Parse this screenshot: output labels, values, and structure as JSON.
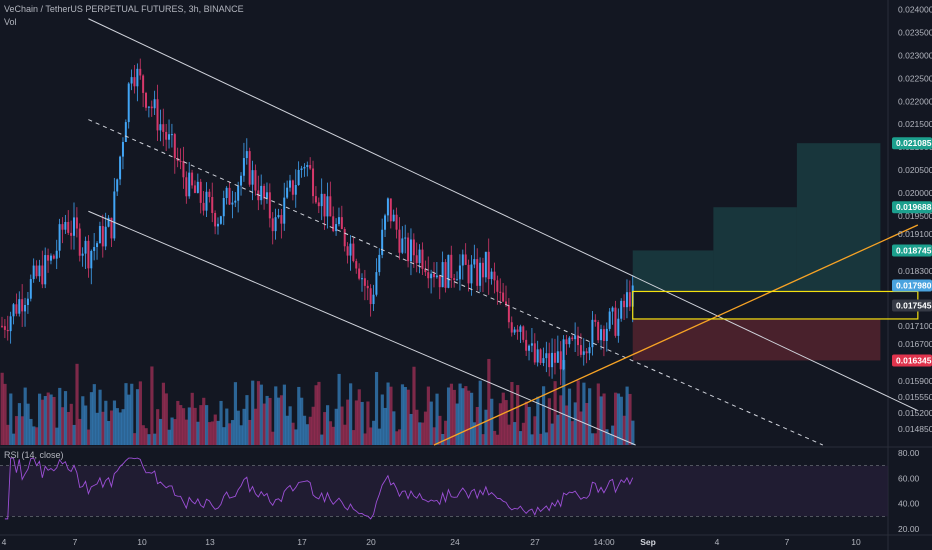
{
  "header": {
    "symbol_line": "VeChain / TetherUS PERPETUAL FUTURES, 3h, BINANCE",
    "vol_label": "Vol",
    "rsi_label": "RSI (14, close)"
  },
  "colors": {
    "background": "#131722",
    "bull": "#42a5f5",
    "bear": "#d6386a",
    "channel_line": "#d1d4dc",
    "trend_line": "#f7a325",
    "box_outline": "#f5e10f",
    "target_zone": "#1e5152",
    "stop_zone": "#5c2530",
    "rsi_line": "#9c4fd6",
    "rsi_band": "#2a1f3d",
    "price_badge_green": "#1ca08e",
    "price_badge_red": "#e0344d",
    "price_badge_current": "#4aa3df",
    "price_badge_gray": "#363a45"
  },
  "chart_data": {
    "type": "candlestick",
    "price_axis": {
      "min": 0.0145,
      "max": 0.0241,
      "tick_labels": [
        "0.024000",
        "0.023500",
        "0.023000",
        "0.022500",
        "0.022000",
        "0.021500",
        "0.021000",
        "0.020500",
        "0.020000",
        "0.019500",
        "0.019100",
        "0.018300",
        "0.017100",
        "0.016700",
        "0.015900",
        "0.015550",
        "0.015200",
        "0.014850"
      ],
      "tick_values": [
        0.024,
        0.0235,
        0.023,
        0.0225,
        0.022,
        0.0215,
        0.021,
        0.0205,
        0.02,
        0.0195,
        0.0191,
        0.0183,
        0.0171,
        0.0167,
        0.0159,
        0.01555,
        0.0152,
        0.01485
      ]
    },
    "price_badges": [
      {
        "label": "0.021085",
        "value": 0.021085,
        "style": "green"
      },
      {
        "label": "0.019688",
        "value": 0.019688,
        "style": "green"
      },
      {
        "label": "0.018745",
        "value": 0.018745,
        "style": "green"
      },
      {
        "label": "0.017980",
        "value": 0.01798,
        "style": "current"
      },
      {
        "label": "0.017545",
        "value": 0.017545,
        "style": "gray"
      },
      {
        "label": "0.016345",
        "value": 0.016345,
        "style": "red"
      }
    ],
    "time_axis": {
      "labels": [
        "4",
        "7",
        "10",
        "13",
        "17",
        "20",
        "24",
        "27",
        "14:00",
        "Sep",
        "4",
        "7",
        "10"
      ],
      "bold": [
        false,
        false,
        false,
        false,
        false,
        false,
        false,
        false,
        false,
        true,
        false,
        false,
        false
      ]
    },
    "candles_count": 220,
    "candle_path_anchors": [
      [
        0,
        0.0171
      ],
      [
        10,
        0.018
      ],
      [
        18,
        0.0186
      ],
      [
        22,
        0.0194
      ],
      [
        30,
        0.0187
      ],
      [
        38,
        0.0193
      ],
      [
        45,
        0.0228
      ],
      [
        55,
        0.0215
      ],
      [
        65,
        0.0201
      ],
      [
        75,
        0.0195
      ],
      [
        85,
        0.0206
      ],
      [
        95,
        0.0193
      ],
      [
        105,
        0.0207
      ],
      [
        115,
        0.0193
      ],
      [
        122,
        0.0188
      ],
      [
        128,
        0.0176
      ],
      [
        134,
        0.0197
      ],
      [
        140,
        0.0187
      ],
      [
        145,
        0.0187
      ],
      [
        152,
        0.0182
      ],
      [
        158,
        0.0184
      ],
      [
        165,
        0.0182
      ],
      [
        168,
        0.0184
      ],
      [
        172,
        0.0178
      ],
      [
        176,
        0.0172
      ],
      [
        180,
        0.0172
      ],
      [
        185,
        0.0163
      ],
      [
        190,
        0.0163
      ],
      [
        196,
        0.0165
      ],
      [
        202,
        0.0168
      ],
      [
        208,
        0.0171
      ],
      [
        214,
        0.0172
      ],
      [
        218,
        0.0178
      ],
      [
        219,
        0.01798
      ]
    ],
    "drawings": {
      "channel_upper": [
        [
          30,
          0.0238
        ],
        [
          318,
          0.01525
        ]
      ],
      "channel_mid": [
        [
          30,
          0.0216
        ],
        [
          285,
          0.0145
        ]
      ],
      "channel_lower": [
        [
          30,
          0.0196
        ],
        [
          220,
          0.0145
        ]
      ],
      "trend_line": [
        [
          150,
          0.0145
        ],
        [
          318,
          0.0193
        ]
      ],
      "entry_box": {
        "x0": 219,
        "x1": 318,
        "top": 0.01785,
        "bottom": 0.01725
      },
      "target_zones": [
        {
          "x0": 219,
          "x1": 247,
          "top": 0.018745
        },
        {
          "x0": 247,
          "x1": 276,
          "top": 0.019688
        },
        {
          "x0": 276,
          "x1": 305,
          "top": 0.021085
        }
      ],
      "stop_zone": {
        "x0": 219,
        "x1": 305,
        "top": 0.01725,
        "bottom": 0.016345
      }
    },
    "rsi": {
      "min": 20,
      "max": 80,
      "tick_labels": [
        "80.00",
        "60.00",
        "40.00",
        "20.00"
      ],
      "tick_values": [
        80,
        60,
        40,
        20
      ],
      "upper_band": 70,
      "lower_band": 30
    }
  }
}
